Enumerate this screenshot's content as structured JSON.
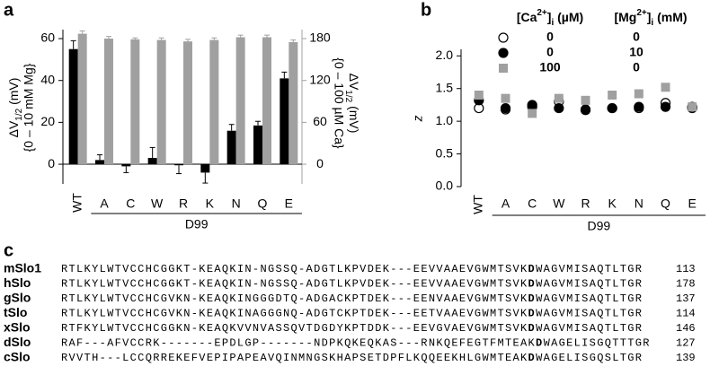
{
  "panel_labels": [
    "a",
    "b",
    "c"
  ],
  "chart_data": [
    {
      "type": "bar",
      "categories": [
        "WT",
        "A",
        "C",
        "W",
        "R",
        "K",
        "N",
        "Q",
        "E"
      ],
      "group_label": "D99",
      "ylabel": {
        "main": "ΔV",
        "sub": "1/2",
        "rest": " (mV)",
        "line2": "{0 – 10 mM Mg}"
      },
      "y2label": {
        "main": "ΔV",
        "sub": "1/2",
        "rest": " (mV)",
        "line2": "{0 – 100 µM Ca}"
      },
      "ylim": [
        -9.4,
        64.3
      ],
      "yticks": [
        0,
        20,
        40,
        60
      ],
      "y2lim": [
        -28.2,
        192.9
      ],
      "y2ticks": [
        0,
        60,
        120,
        180
      ],
      "series": [
        {
          "color": "#000000",
          "values": [
            55,
            2,
            -1,
            3,
            -0.5,
            -4,
            16,
            18.5,
            41
          ],
          "errors": [
            4,
            2.5,
            3,
            5,
            4,
            5,
            3,
            2,
            3
          ]
        },
        {
          "color": "#a0a0a0",
          "axis": "y2",
          "values": [
            187,
            180,
            179,
            178,
            176,
            178,
            182,
            182,
            175
          ],
          "errors": [
            4,
            3,
            2,
            3,
            3,
            3,
            3,
            3,
            3
          ]
        }
      ]
    },
    {
      "type": "scatter",
      "categories": [
        "WT",
        "A",
        "C",
        "W",
        "R",
        "K",
        "N",
        "Q",
        "E"
      ],
      "group_label": "D99",
      "ylabel": "z",
      "ylim": [
        0,
        2.1
      ],
      "yticks": [
        {
          "value": 0,
          "label": "0.0"
        },
        0.5,
        {
          "value": 1,
          "label": "1.0"
        },
        1.5,
        {
          "value": 2,
          "label": "2.0"
        }
      ],
      "legend_header": {
        "ca": {
          "pre": "[Ca",
          "sup": "2+",
          "mid": "]",
          "sub": "i",
          "post": " (µM)"
        },
        "mg": {
          "pre": "[Mg",
          "sup": "2+",
          "mid": "]",
          "sub": "i",
          "post": " (mM)"
        }
      },
      "series": [
        {
          "marker": "open-circle",
          "color": "#000000",
          "ca": "0",
          "mg": "0",
          "values": [
            1.2,
            1.18,
            1.22,
            1.3,
            1.18,
            1.2,
            1.2,
            1.28,
            1.2
          ]
        },
        {
          "marker": "circle",
          "color": "#000000",
          "ca": "0",
          "mg": "10",
          "values": [
            1.32,
            1.2,
            1.25,
            1.2,
            1.17,
            1.2,
            1.22,
            1.22,
            1.22
          ]
        },
        {
          "marker": "square",
          "color": "#a0a0a0",
          "ca": "100",
          "mg": "0",
          "values": [
            1.4,
            1.35,
            1.12,
            1.35,
            1.32,
            1.4,
            1.42,
            1.52,
            1.22
          ]
        }
      ]
    }
  ],
  "alignment": {
    "rows": [
      {
        "name": "mSlo1",
        "pre": "RTLKYLWTVCCHCGGKT-KEAQKIN-NGSSQ-ADGTLKPVDEK---EEVVAAEVGWMTSVK",
        "bold": "D",
        "post": "WAGVMISAQTLTGR",
        "number": "113"
      },
      {
        "name": "hSlo",
        "pre": "RTLKYLWTVCCHCGGKT-KEAQKIN-NGSSQ-ADGTLKPVDEK---EEVVAAEVGWMTSVK",
        "bold": "D",
        "post": "WAGVMISAQTLTGR",
        "number": "178"
      },
      {
        "name": "gSlo",
        "pre": "RTLKYLWTVCCHCGVKN-KEAQKINGGGDTQ-ADGACKPTDEK---EENVAAEVGWMTSVK",
        "bold": "D",
        "post": "WAGVMISAQTLTGR",
        "number": "137"
      },
      {
        "name": "tSlo",
        "pre": "RTLKYLWTVCCHCGVKN-KEAQKINAGGGNQ-ADGTCKPTDEK---EETVAAEVGWMTSVK",
        "bold": "D",
        "post": "WAGVMISAQTLTGR",
        "number": "114"
      },
      {
        "name": "xSlo",
        "pre": "RTFKYLWTVCCHCGGKN-KEAQKVVNVASSQVTDGDYKPTDDK---EEVGVAEVGWMTSVK",
        "bold": "D",
        "post": "WAGVMISAQTLTGR",
        "number": "146"
      },
      {
        "name": "dSlo",
        "pre": "RAF---AFVCCRK-------EPDLGP-------NDPKQKEQKAS---RNKQEFEGTFMTEAK",
        "bold": "D",
        "post": "WAGELISGQTTTGR",
        "number": "127"
      },
      {
        "name": "cSlo",
        "pre": "RVVTH---LCCQRREKEFVEPIPAPEAVQINMNGSKHAPSETDPFLKQQEEKHLGWMTEAK",
        "bold": "D",
        "post": "WAGELISGQSLTGR",
        "number": "139"
      }
    ]
  }
}
